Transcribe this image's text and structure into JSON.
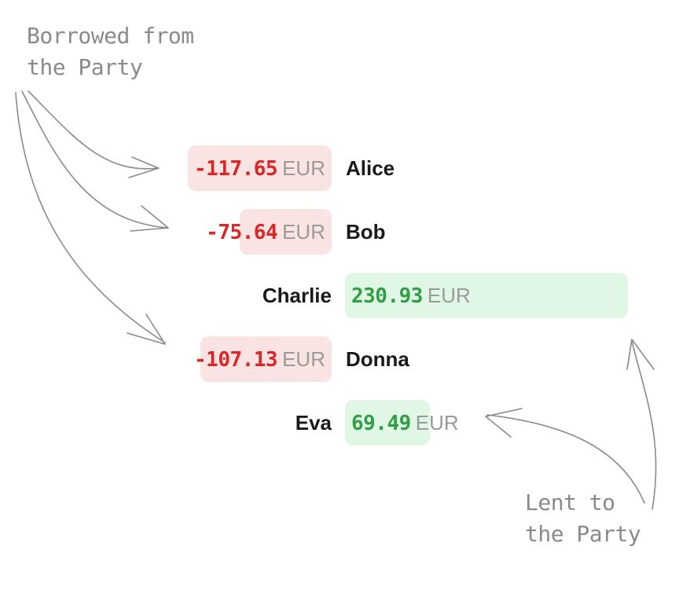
{
  "annotations": {
    "borrowed": "Borrowed from\nthe Party",
    "lent": "Lent to\nthe Party"
  },
  "currency": "EUR",
  "balances": [
    {
      "name": "Alice",
      "amount": "-117.65",
      "value": -117.65
    },
    {
      "name": "Bob",
      "amount": "-75.64",
      "value": -75.64
    },
    {
      "name": "Charlie",
      "amount": "230.93",
      "value": 230.93
    },
    {
      "name": "Donna",
      "amount": "-107.13",
      "value": -107.13
    },
    {
      "name": "Eva",
      "amount": "69.49",
      "value": 69.49
    }
  ],
  "colors": {
    "negative_text": "#dc2626",
    "negative_bar": "#fae3e3",
    "positive_text": "#2f9e44",
    "positive_bar": "#e0f7e6"
  }
}
